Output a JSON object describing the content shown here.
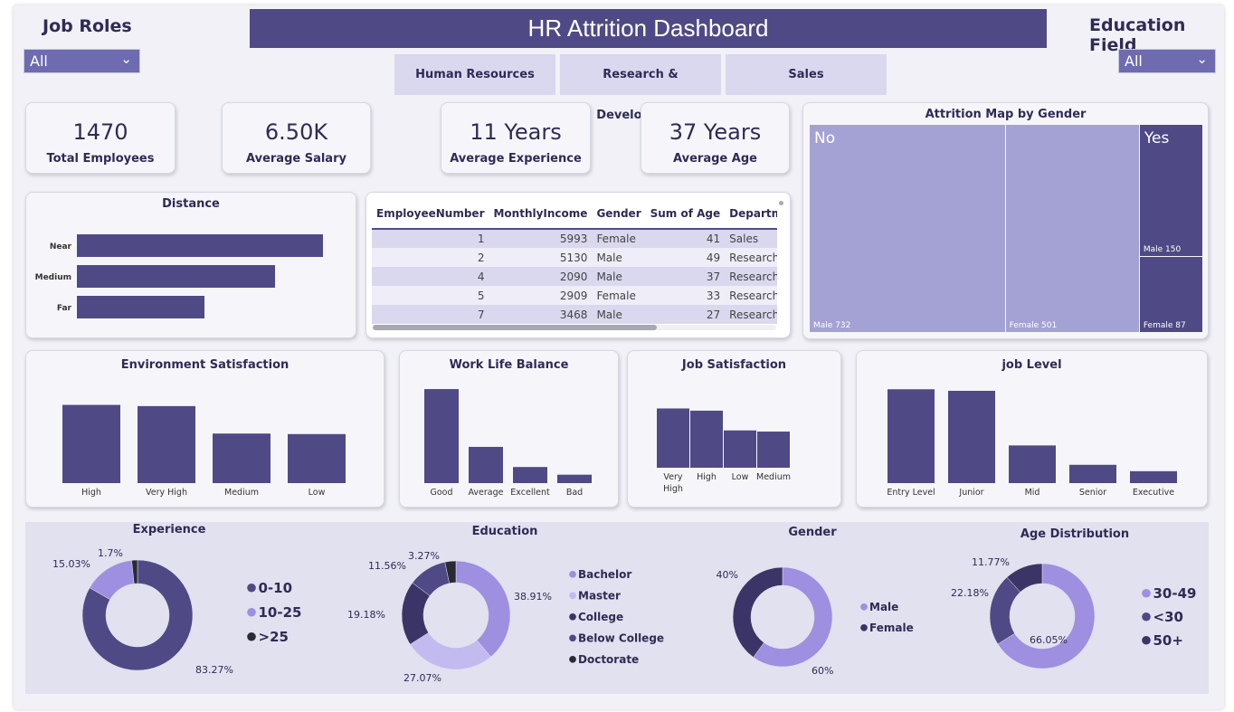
{
  "title": "HR Attrition Dashboard",
  "job_roles": {
    "label": "Job Roles",
    "value": "All"
  },
  "education_field": {
    "label": "Education Field",
    "value": "All"
  },
  "departments": [
    "Human Resources",
    "Research & Development",
    "Sales"
  ],
  "kpis": [
    {
      "value": "1470",
      "label": "Total Employees"
    },
    {
      "value": "6.50K",
      "label": "Average Salary"
    },
    {
      "value": "11 Years",
      "label": "Average Experience"
    },
    {
      "value": "37 Years",
      "label": "Average Age"
    }
  ],
  "colors": {
    "primary": "#4f4a85",
    "light": "#9e8fe0",
    "lighter": "#c3baf0",
    "dark": "#3b3466",
    "black": "#2a2a35"
  },
  "table": {
    "headers": [
      "EmployeeNumber",
      "MonthlyIncome",
      "Gender",
      "Sum of Age",
      "Department"
    ],
    "rows": [
      [
        "1",
        "5993",
        "Female",
        "41",
        "Sales"
      ],
      [
        "2",
        "5130",
        "Male",
        "49",
        "Research & Develop"
      ],
      [
        "4",
        "2090",
        "Male",
        "37",
        "Research & Develop"
      ],
      [
        "5",
        "2909",
        "Female",
        "33",
        "Research & Develop"
      ],
      [
        "7",
        "3468",
        "Male",
        "27",
        "Research & Develop"
      ]
    ]
  },
  "treemap": {
    "title": "Attrition Map by Gender",
    "groups": [
      {
        "label": "No",
        "items": [
          {
            "label": "Male 732",
            "value": 732
          },
          {
            "label": "Female 501",
            "value": 501
          }
        ]
      },
      {
        "label": "Yes",
        "items": [
          {
            "label": "Male 150",
            "value": 150
          },
          {
            "label": "Female 87",
            "value": 87
          }
        ]
      }
    ]
  },
  "chart_data": [
    {
      "type": "bar",
      "orientation": "horizontal",
      "title": "Distance",
      "categories": [
        "Near",
        "Medium",
        "Far"
      ],
      "values": [
        272,
        219,
        141
      ]
    },
    {
      "type": "bar",
      "title": "Environment Satisfaction",
      "categories": [
        "High",
        "Very High",
        "Medium",
        "Low"
      ],
      "values": [
        453,
        446,
        287,
        284
      ]
    },
    {
      "type": "bar",
      "title": "Work Life Balance",
      "categories": [
        "Good",
        "Average",
        "Excellent",
        "Bad"
      ],
      "values": [
        893,
        344,
        153,
        80
      ]
    },
    {
      "type": "bar",
      "title": "Job Satisfaction",
      "categories": [
        "Very High",
        "High",
        "Low",
        "Medium"
      ],
      "values": [
        459,
        442,
        289,
        280
      ]
    },
    {
      "type": "bar",
      "title": "job Level",
      "categories": [
        "Entry Level",
        "Junior",
        "Mid",
        "Senior",
        "Executive"
      ],
      "values": [
        543,
        534,
        218,
        106,
        69
      ]
    },
    {
      "type": "pie",
      "title": "Experience",
      "categories": [
        "0-10",
        "10-25",
        ">25"
      ],
      "values": [
        83.27,
        15.03,
        1.7
      ],
      "labels": [
        "83.27%",
        "15.03%",
        "1.7%"
      ]
    },
    {
      "type": "pie",
      "title": "Education",
      "categories": [
        "Bachelor",
        "Master",
        "College",
        "Below College",
        "Doctorate"
      ],
      "values": [
        38.91,
        27.07,
        19.18,
        11.56,
        3.27
      ],
      "labels": [
        "38.91%",
        "27.07%",
        "19.18%",
        "11.56%",
        "3.27%"
      ]
    },
    {
      "type": "pie",
      "title": "Gender",
      "categories": [
        "Male",
        "Female"
      ],
      "values": [
        60,
        40
      ],
      "labels": [
        "60%",
        "40%"
      ]
    },
    {
      "type": "pie",
      "title": "Age Distribution",
      "categories": [
        "30-49",
        "<30",
        "50+"
      ],
      "values": [
        66.05,
        22.18,
        11.77
      ],
      "labels": [
        "66.05%",
        "22.18%",
        "11.77%"
      ]
    }
  ]
}
